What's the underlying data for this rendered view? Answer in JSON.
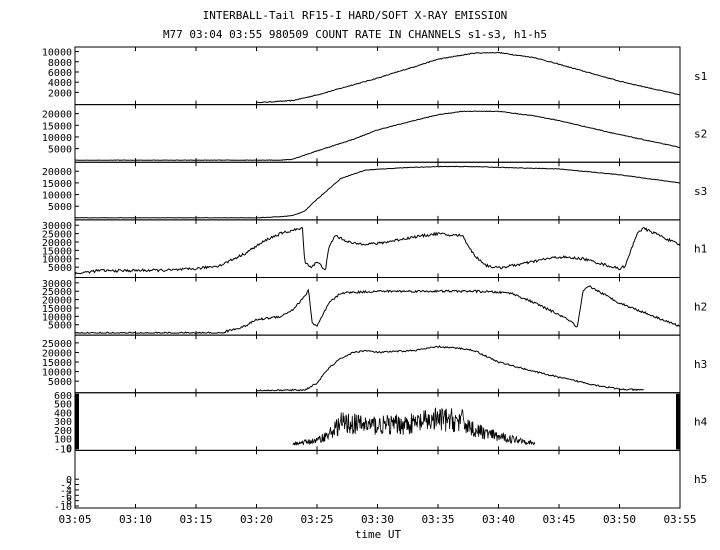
{
  "title": "INTERBALL-Tail RF15-I HARD/SOFT X-RAY EMISSION",
  "subtitle": "M77  03:04 03:55 980509  COUNT RATE IN CHANNELS s1-s3, h1-h5",
  "colors": {
    "line": "#000000",
    "background": "#ffffff"
  },
  "chart_data": {
    "type": "line",
    "title": "INTERBALL-Tail RF15-I HARD/SOFT X-RAY EMISSION",
    "subtitle": "M77  03:04 03:55 980509  COUNT RATE IN CHANNELS s1-s3, h1-h5",
    "xlabel": "time UT",
    "x_ticks": [
      "03:05",
      "03:10",
      "03:15",
      "03:20",
      "03:25",
      "03:30",
      "03:35",
      "03:40",
      "03:45",
      "03:50",
      "03:55"
    ],
    "xlim": [
      "03:05",
      "03:55"
    ],
    "grid": false,
    "panels": [
      {
        "name": "s1",
        "ylim": [
          0,
          10500
        ],
        "yticks": [
          2000,
          4000,
          6000,
          8000,
          10000
        ],
        "points": [
          [
            "03:20",
            0
          ],
          [
            "03:23",
            400
          ],
          [
            "03:25",
            1500
          ],
          [
            "03:28",
            3500
          ],
          [
            "03:30",
            4800
          ],
          [
            "03:33",
            7000
          ],
          [
            "03:35",
            8500
          ],
          [
            "03:38",
            9700
          ],
          [
            "03:40",
            9800
          ],
          [
            "03:43",
            8800
          ],
          [
            "03:45",
            7500
          ],
          [
            "03:50",
            4200
          ],
          [
            "03:55",
            1500
          ]
        ],
        "noise": 0.015
      },
      {
        "name": "s2",
        "ylim": [
          0,
          23000
        ],
        "yticks": [
          5000,
          10000,
          15000,
          20000
        ],
        "points": [
          [
            "03:05",
            0
          ],
          [
            "03:20",
            0
          ],
          [
            "03:22",
            50
          ],
          [
            "03:23",
            500
          ],
          [
            "03:25",
            4000
          ],
          [
            "03:28",
            9000
          ],
          [
            "03:30",
            13000
          ],
          [
            "03:33",
            17000
          ],
          [
            "03:35",
            19500
          ],
          [
            "03:37",
            21000
          ],
          [
            "03:40",
            21000
          ],
          [
            "03:43",
            19000
          ],
          [
            "03:45",
            17000
          ],
          [
            "03:50",
            11000
          ],
          [
            "03:55",
            5500
          ]
        ],
        "noise": 0.012
      },
      {
        "name": "s3",
        "ylim": [
          0,
          23000
        ],
        "yticks": [
          5000,
          10000,
          15000,
          20000
        ],
        "points": [
          [
            "03:05",
            0
          ],
          [
            "03:20",
            0
          ],
          [
            "03:22",
            500
          ],
          [
            "03:23",
            1000
          ],
          [
            "03:24",
            3000
          ],
          [
            "03:25",
            8000
          ],
          [
            "03:27",
            17000
          ],
          [
            "03:29",
            20500
          ],
          [
            "03:32",
            21500
          ],
          [
            "03:35",
            22000
          ],
          [
            "03:38",
            22000
          ],
          [
            "03:41",
            21500
          ],
          [
            "03:45",
            21000
          ],
          [
            "03:50",
            18500
          ],
          [
            "03:55",
            15000
          ]
        ],
        "noise": 0.01
      },
      {
        "name": "h1",
        "ylim": [
          0,
          32000
        ],
        "yticks": [
          5000,
          10000,
          15000,
          20000,
          25000,
          30000
        ],
        "points": [
          [
            "03:05",
            1000
          ],
          [
            "03:07",
            3000
          ],
          [
            "03:08",
            2800
          ],
          [
            "03:10",
            3000
          ],
          [
            "03:13",
            3200
          ],
          [
            "03:15",
            4000
          ],
          [
            "03:17",
            6000
          ],
          [
            "03:19",
            13000
          ],
          [
            "03:21",
            22000
          ],
          [
            "03:22",
            25000
          ],
          [
            "03:23",
            27000
          ],
          [
            "03:23.8",
            28000
          ],
          [
            "03:24",
            8000
          ],
          [
            "03:24.5",
            5000
          ],
          [
            "03:25",
            8000
          ],
          [
            "03:25.7",
            3500
          ],
          [
            "03:26",
            17000
          ],
          [
            "03:26.5",
            24000
          ],
          [
            "03:27",
            22000
          ],
          [
            "03:28",
            19000
          ],
          [
            "03:30",
            19000
          ],
          [
            "03:33",
            23000
          ],
          [
            "03:35",
            25000
          ],
          [
            "03:36",
            24000
          ],
          [
            "03:37",
            24000
          ],
          [
            "03:38",
            12000
          ],
          [
            "03:39",
            6000
          ],
          [
            "03:40",
            4500
          ],
          [
            "03:42",
            7000
          ],
          [
            "03:44",
            10000
          ],
          [
            "03:45",
            11000
          ],
          [
            "03:47",
            10000
          ],
          [
            "03:49",
            6000
          ],
          [
            "03:50",
            4000
          ],
          [
            "03:50.5",
            6000
          ],
          [
            "03:51.5",
            26000
          ],
          [
            "03:52",
            28000
          ],
          [
            "03:53",
            25000
          ],
          [
            "03:55",
            18000
          ]
        ],
        "noise": 0.05
      },
      {
        "name": "h2",
        "ylim": [
          0,
          32000
        ],
        "yticks": [
          5000,
          10000,
          15000,
          20000,
          25000,
          30000
        ],
        "points": [
          [
            "03:05",
            0
          ],
          [
            "03:17",
            0
          ],
          [
            "03:19",
            4000
          ],
          [
            "03:20",
            8000
          ],
          [
            "03:22",
            10000
          ],
          [
            "03:23",
            14000
          ],
          [
            "03:24",
            22000
          ],
          [
            "03:24.3",
            26000
          ],
          [
            "03:24.6",
            6000
          ],
          [
            "03:25",
            4000
          ],
          [
            "03:26",
            18000
          ],
          [
            "03:27",
            24000
          ],
          [
            "03:30",
            25000
          ],
          [
            "03:35",
            25000
          ],
          [
            "03:38",
            25000
          ],
          [
            "03:41",
            24000
          ],
          [
            "03:43",
            18000
          ],
          [
            "03:45",
            11000
          ],
          [
            "03:46",
            7000
          ],
          [
            "03:46.5",
            3000
          ],
          [
            "03:47",
            25000
          ],
          [
            "03:47.5",
            28000
          ],
          [
            "03:50",
            18000
          ],
          [
            "03:55",
            4000
          ]
        ],
        "noise": 0.04
      },
      {
        "name": "h3",
        "ylim": [
          0,
          28000
        ],
        "yticks": [
          5000,
          10000,
          15000,
          20000,
          25000
        ],
        "points": [
          [
            "03:20",
            0
          ],
          [
            "03:24",
            400
          ],
          [
            "03:25",
            4000
          ],
          [
            "03:26",
            12000
          ],
          [
            "03:27",
            17000
          ],
          [
            "03:28",
            20000
          ],
          [
            "03:29",
            21000
          ],
          [
            "03:30",
            20000
          ],
          [
            "03:33",
            21000
          ],
          [
            "03:35",
            23000
          ],
          [
            "03:37",
            22000
          ],
          [
            "03:38",
            21000
          ],
          [
            "03:40",
            15000
          ],
          [
            "03:43",
            10000
          ],
          [
            "03:45",
            7000
          ],
          [
            "03:48",
            3000
          ],
          [
            "03:50",
            800
          ],
          [
            "03:52",
            300
          ]
        ],
        "noise": 0.03
      },
      {
        "name": "h4",
        "ylim": [
          -10,
          600
        ],
        "yticks": [
          -10,
          0,
          100,
          200,
          300,
          400,
          500,
          600
        ],
        "points": [
          [
            "03:23",
            40
          ],
          [
            "03:25",
            80
          ],
          [
            "03:26",
            150
          ],
          [
            "03:27",
            280
          ],
          [
            "03:30",
            250
          ],
          [
            "03:33",
            270
          ],
          [
            "03:35",
            320
          ],
          [
            "03:37",
            300
          ],
          [
            "03:38",
            200
          ],
          [
            "03:40",
            120
          ],
          [
            "03:42",
            80
          ],
          [
            "03:43",
            40
          ]
        ],
        "noise": 0.45,
        "edge_bars": true
      },
      {
        "name": "h5",
        "ylim": [
          -10,
          10
        ],
        "yticks": [
          0,
          -2,
          -4,
          -6,
          -8,
          -10
        ],
        "points": [],
        "noise": 0
      }
    ]
  }
}
